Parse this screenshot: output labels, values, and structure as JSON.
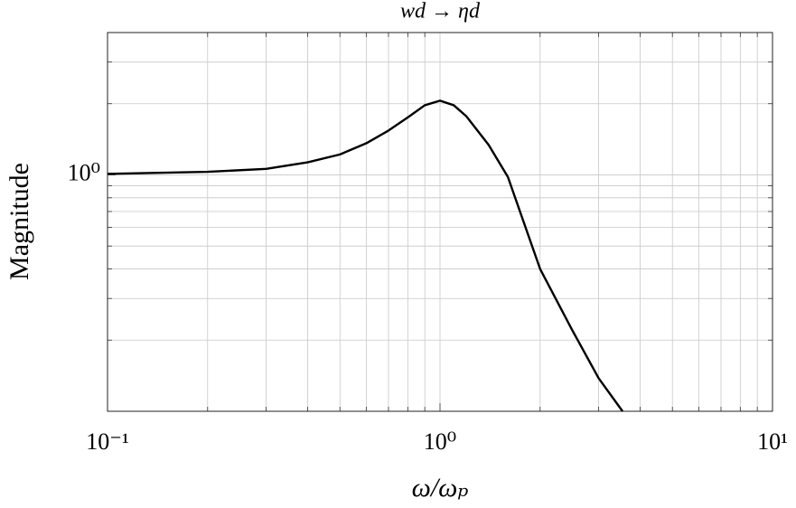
{
  "chart_data": {
    "type": "line",
    "title": "wd → ηd",
    "x_label": "ω/ωₚ",
    "y_label": "Magnitude",
    "log_x": true,
    "log_y": true,
    "grid": true,
    "xlim": [
      0.1,
      10
    ],
    "ylim": [
      0.1,
      4
    ],
    "xticks": [
      {
        "value": 0.1,
        "label": "10⁻¹"
      },
      {
        "value": 1,
        "label": "10⁰"
      },
      {
        "value": 10,
        "label": "10¹"
      }
    ],
    "yticks": [
      {
        "value": 1,
        "label": "10⁰"
      }
    ],
    "xminor": [
      0.2,
      0.3,
      0.4,
      0.5,
      0.6,
      0.7,
      0.8,
      0.9,
      2,
      3,
      4,
      5,
      6,
      7,
      8,
      9
    ],
    "yminor": [
      0.2,
      0.3,
      0.4,
      0.5,
      0.6,
      0.7,
      0.8,
      0.9,
      2,
      3
    ],
    "x": [
      0.1,
      0.2,
      0.3,
      0.4,
      0.5,
      0.6,
      0.7,
      0.8,
      0.9,
      1.0,
      1.1,
      1.2,
      1.4,
      1.6,
      2.0,
      2.5,
      3.0,
      3.54
    ],
    "series": [
      {
        "name": "Magnitude",
        "color": "#000000",
        "values": [
          1.01,
          1.03,
          1.06,
          1.13,
          1.22,
          1.36,
          1.54,
          1.75,
          1.97,
          2.06,
          1.97,
          1.77,
          1.34,
          0.98,
          0.4,
          0.22,
          0.138,
          0.1
        ]
      }
    ]
  }
}
